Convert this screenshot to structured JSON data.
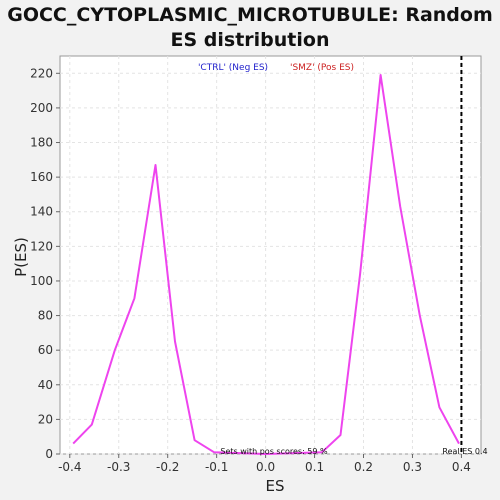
{
  "chart_data": {
    "type": "line",
    "title_line1": "GOCC_CYTOPLASMIC_MICROTUBULE: Random",
    "title_line2": "ES distribution",
    "xlabel": "ES",
    "ylabel": "P(ES)",
    "xlim": [
      -0.42,
      0.44
    ],
    "ylim": [
      0,
      230
    ],
    "x_ticks": [
      -0.4,
      -0.3,
      -0.2,
      -0.1,
      0.0,
      0.1,
      0.2,
      0.3,
      0.4
    ],
    "x_tick_labels": [
      "-0.4",
      "-0.3",
      "-0.2",
      "-0.1",
      "0.0",
      "0.1",
      "0.2",
      "0.3",
      "0.4"
    ],
    "y_ticks": [
      0,
      20,
      40,
      60,
      80,
      100,
      120,
      140,
      160,
      180,
      200,
      220
    ],
    "y_tick_labels": [
      "0",
      "20",
      "40",
      "60",
      "80",
      "100",
      "120",
      "140",
      "160",
      "180",
      "200",
      "220"
    ],
    "grid": true,
    "legend": [
      {
        "label": "'CTRL' (Neg ES)",
        "color": "#2222cc"
      },
      {
        "label": "'SMZ' (Pos ES)",
        "color": "#cc2222"
      }
    ],
    "series": [
      {
        "color": "#ee44ee",
        "x": [
          -0.393,
          -0.355,
          -0.308,
          -0.268,
          -0.225,
          -0.185,
          -0.145,
          -0.105,
          0.0,
          0.115,
          0.153,
          0.193,
          0.235,
          0.275,
          0.315,
          0.355,
          0.395
        ],
        "y": [
          6,
          17,
          60,
          90,
          167,
          65,
          8,
          1,
          0,
          1,
          11,
          104,
          219,
          143,
          80,
          27,
          6
        ]
      }
    ],
    "real_es": 0.4,
    "annotations": {
      "sets_with_pos": "Sets with pos scores: 59 %",
      "real_es": "Real ES 0.4"
    }
  }
}
